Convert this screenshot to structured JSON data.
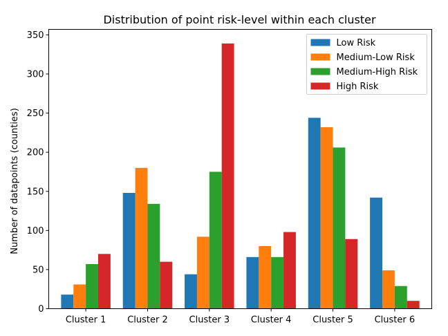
{
  "chart_data": {
    "type": "bar",
    "title": "Distribution of point risk-level within each cluster",
    "xlabel": "",
    "ylabel": "Number of datapoints (counties)",
    "categories": [
      "Cluster 1",
      "Cluster 2",
      "Cluster 3",
      "Cluster 4",
      "Cluster 5",
      "Cluster 6"
    ],
    "ylim": [
      0,
      357
    ],
    "yticks": [
      0,
      50,
      100,
      150,
      200,
      250,
      300,
      350
    ],
    "grid": false,
    "legend_position": "top-right",
    "series": [
      {
        "name": "Low Risk",
        "color": "#1f77b4",
        "values": [
          18,
          148,
          44,
          66,
          244,
          142
        ]
      },
      {
        "name": "Medium-Low Risk",
        "color": "#ff7f0e",
        "values": [
          31,
          180,
          92,
          80,
          232,
          49
        ]
      },
      {
        "name": "Medium-High Risk",
        "color": "#2ca02c",
        "values": [
          57,
          134,
          175,
          66,
          206,
          29
        ]
      },
      {
        "name": "High Risk",
        "color": "#d62728",
        "values": [
          70,
          60,
          339,
          98,
          89,
          10
        ]
      }
    ]
  }
}
